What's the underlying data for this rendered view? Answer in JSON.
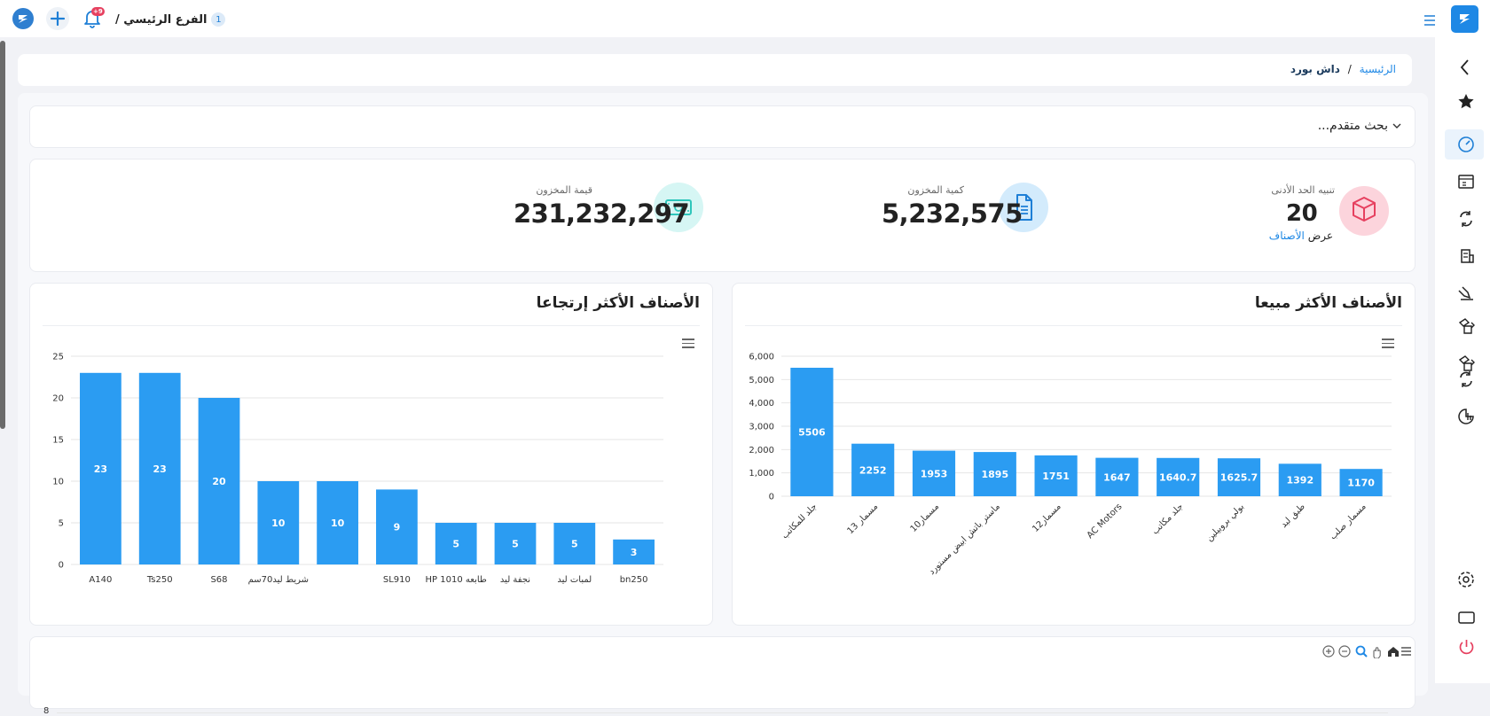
{
  "topbar": {
    "branch_label": "الفرع الرئيسي /",
    "branch_badge": "1",
    "notification_count": "+9"
  },
  "breadcrumb": {
    "home": "الرئيسية",
    "separator": "/",
    "current": "داش بورد"
  },
  "search": {
    "advanced_label": "بحث متقدم..."
  },
  "stats": {
    "min_alert": {
      "label": "تنبيه الحد الأدنى",
      "value": "20",
      "link_prefix": "عرض ",
      "link_text": "الأصناف"
    },
    "stock_qty": {
      "label": "كمية المخزون",
      "value": "5,232,575"
    },
    "stock_value": {
      "label": "قيمة المخزون",
      "value": "231,232,297"
    }
  },
  "colors": {
    "bar": "#2b9cf2",
    "accent": "#1e88e5",
    "cube_bg": "#fcd4dc",
    "cube_icon": "#e6405f",
    "doc_bg": "#d3ebfc",
    "doc_icon": "#1e7fd6",
    "money_bg": "#d6f6f4",
    "money_icon": "#2ec6bb"
  },
  "chart_data": [
    {
      "type": "bar",
      "title": "الأصناف الأكثر مبيعا",
      "categories": [
        "جلد للمكاتب",
        "مسمار 13",
        "مسمار10",
        "ماستر باتش ابيض مستورد",
        "مسمار12",
        "AC Motors",
        "جلد مكاتب",
        "بولي بروبيلين",
        "طبق لبد",
        "مسمار صلب"
      ],
      "values": [
        5506,
        2252,
        1953,
        1895,
        1751,
        1647,
        1640.7,
        1625.7,
        1392,
        1170
      ],
      "data_labels": [
        "5506",
        "2252",
        "1953",
        "1895",
        "1751",
        "1647",
        "1640.7",
        "1625.7",
        "1392",
        "1170"
      ],
      "ylim": [
        0,
        6000
      ],
      "yticks": [
        "0",
        "1,000",
        "2,000",
        "3,000",
        "4,000",
        "5,000",
        "6,000"
      ],
      "grid": true
    },
    {
      "type": "bar",
      "title": "الأصناف الأكثر إرتجاعا",
      "categories": [
        "A140",
        "Ts250",
        "S68",
        "شريط ليد70سم",
        "",
        "SL910",
        "HP طابعه 1010",
        "نجفة ليد",
        "لمبات ليد",
        "bn250"
      ],
      "values": [
        23,
        23,
        20,
        10,
        10,
        9,
        5,
        5,
        5,
        3
      ],
      "data_labels": [
        "23",
        "23",
        "20",
        "10",
        "10",
        "9",
        "5",
        "5",
        "5",
        "3"
      ],
      "ylim": [
        0,
        25
      ],
      "yticks": [
        "0",
        "5",
        "10",
        "15",
        "20",
        "25"
      ],
      "grid": true
    }
  ],
  "bottom_chart": {
    "first_tick": "8"
  }
}
